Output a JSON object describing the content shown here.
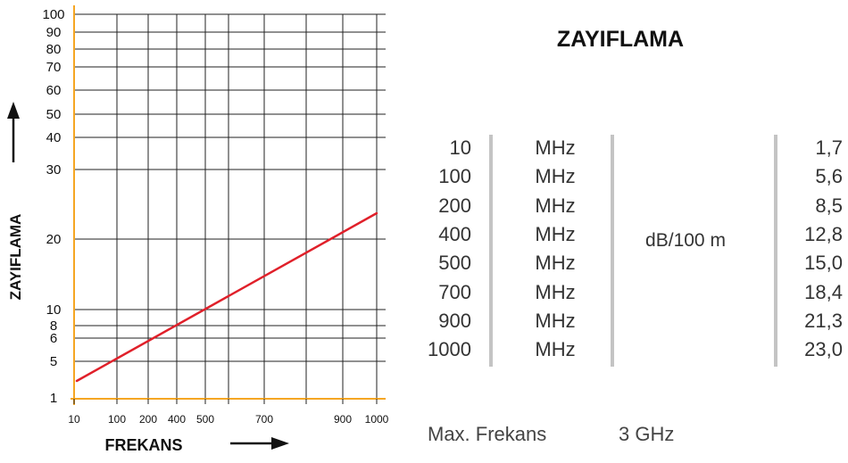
{
  "chart_data": {
    "type": "line",
    "title": "ZAYIFLAMA",
    "xlabel": "FREKANS",
    "ylabel": "ZAYIFLAMA",
    "x_ticks": [
      "10",
      "100",
      "200",
      "400",
      "500",
      "700",
      "900",
      "1000"
    ],
    "y_ticks": [
      "1",
      "5",
      "6",
      "8",
      "10",
      "20",
      "30",
      "40",
      "50",
      "60",
      "70",
      "80",
      "90",
      "100"
    ],
    "grid": true,
    "series": [
      {
        "x": [
          10,
          100,
          200,
          400,
          500,
          700,
          900,
          1000
        ],
        "y": [
          1.7,
          5.6,
          8.5,
          12.8,
          15.0,
          18.4,
          21.3,
          23.0
        ]
      }
    ],
    "colors": {
      "line": "#e0202a",
      "left_axis": "#f5a623",
      "bottom_axis": "#f5a623",
      "grid": "#222222"
    }
  },
  "table": {
    "rows": [
      {
        "freq": "10",
        "unit": "MHz",
        "att": "1,7"
      },
      {
        "freq": "100",
        "unit": "MHz",
        "att": "5,6"
      },
      {
        "freq": "200",
        "unit": "MHz",
        "att": "8,5"
      },
      {
        "freq": "400",
        "unit": "MHz",
        "att": "12,8"
      },
      {
        "freq": "500",
        "unit": "MHz",
        "att": "15,0"
      },
      {
        "freq": "700",
        "unit": "MHz",
        "att": "18,4"
      },
      {
        "freq": "900",
        "unit": "MHz",
        "att": "21,3"
      },
      {
        "freq": "1000",
        "unit": "MHz",
        "att": "23,0"
      }
    ],
    "att_unit": "dB/100 m"
  },
  "footer": {
    "label": "Max. Frekans",
    "value": "3 GHz"
  }
}
